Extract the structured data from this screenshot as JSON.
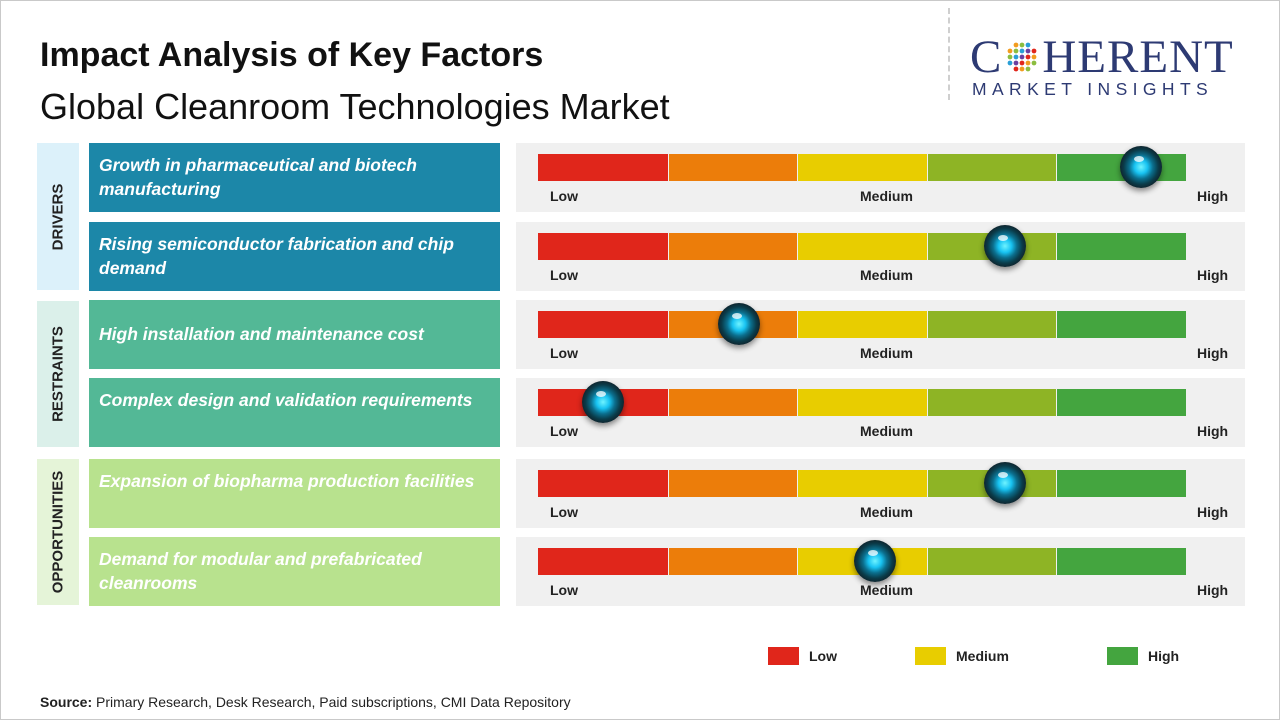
{
  "title": "Impact Analysis of Key Factors",
  "subtitle": "Global Cleanroom Technologies Market",
  "logo": {
    "wordmark_left": "C",
    "wordmark_right": "HERENT",
    "tagline": "MARKET INSIGHTS",
    "mark_icon": "dotted-globe-icon"
  },
  "colors": {
    "low": "#e0261b",
    "low_mid": "#ec7d0a",
    "medium": "#e8cd00",
    "mid_high": "#8eb425",
    "high": "#44a53f",
    "drivers": "#1c87a8",
    "restraints": "#53b896",
    "opportunities": "#b8e28e",
    "drivers_panel": "#dcf1fa",
    "restraints_panel": "#dbf0ea",
    "opportunities_panel": "#e5f4d8"
  },
  "scale_labels": {
    "low": "Low",
    "medium": "Medium",
    "high": "High"
  },
  "categories": [
    {
      "name": "DRIVERS"
    },
    {
      "name": "RESTRAINTS"
    },
    {
      "name": "OPPORTUNITIES"
    }
  ],
  "chart_data": {
    "type": "bar",
    "title": "Impact Analysis of Key Factors",
    "subtitle": "Global Cleanroom Technologies Market",
    "scale": [
      "Low",
      "Medium",
      "High"
    ],
    "value_range": [
      0,
      1
    ],
    "factors": [
      {
        "category": "DRIVERS",
        "label": "Growth in pharmaceutical and biotech manufacturing",
        "impact": 0.93
      },
      {
        "category": "DRIVERS",
        "label": "Rising semiconductor fabrication and chip demand",
        "impact": 0.72
      },
      {
        "category": "RESTRAINTS",
        "label": "High installation and maintenance cost",
        "impact": 0.31
      },
      {
        "category": "RESTRAINTS",
        "label": "Complex design and validation requirements",
        "impact": 0.1
      },
      {
        "category": "OPPORTUNITIES",
        "label": "Expansion of biopharma production facilities",
        "impact": 0.72
      },
      {
        "category": "OPPORTUNITIES",
        "label": "Demand for modular and prefabricated cleanrooms",
        "impact": 0.52
      }
    ]
  },
  "legend": [
    {
      "label": "Low",
      "color": "#e0261b"
    },
    {
      "label": "Medium",
      "color": "#e8cd00"
    },
    {
      "label": "High",
      "color": "#44a53f"
    }
  ],
  "source": {
    "prefix": "Source:",
    "text": " Primary Research, Desk Research, Paid subscriptions, CMI Data Repository"
  }
}
